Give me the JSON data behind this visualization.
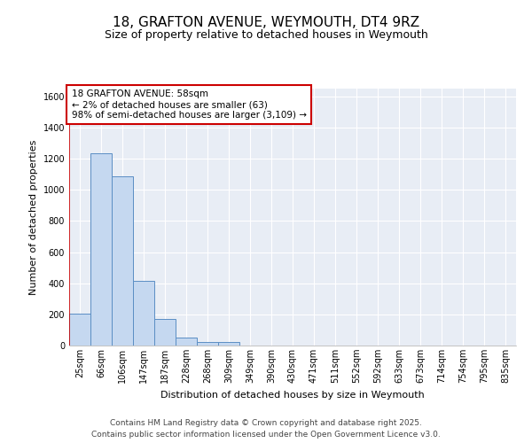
{
  "title_line1": "18, GRAFTON AVENUE, WEYMOUTH, DT4 9RZ",
  "title_line2": "Size of property relative to detached houses in Weymouth",
  "xlabel": "Distribution of detached houses by size in Weymouth",
  "ylabel": "Number of detached properties",
  "categories": [
    "25sqm",
    "66sqm",
    "106sqm",
    "147sqm",
    "187sqm",
    "228sqm",
    "268sqm",
    "309sqm",
    "349sqm",
    "390sqm",
    "430sqm",
    "471sqm",
    "511sqm",
    "552sqm",
    "592sqm",
    "633sqm",
    "673sqm",
    "714sqm",
    "754sqm",
    "795sqm",
    "835sqm"
  ],
  "values": [
    205,
    1235,
    1085,
    415,
    170,
    50,
    25,
    20,
    0,
    0,
    0,
    0,
    0,
    0,
    0,
    0,
    0,
    0,
    0,
    0,
    0
  ],
  "bar_color": "#c5d8f0",
  "bar_edge_color": "#5b8ec4",
  "annotation_line1": "18 GRAFTON AVENUE: 58sqm",
  "annotation_line2": "← 2% of detached houses are smaller (63)",
  "annotation_line3": "98% of semi-detached houses are larger (3,109) →",
  "annotation_box_color": "#cc0000",
  "vline_color": "#cc0000",
  "ylim": [
    0,
    1650
  ],
  "yticks": [
    0,
    200,
    400,
    600,
    800,
    1000,
    1200,
    1400,
    1600
  ],
  "bg_color": "#e8edf5",
  "grid_color": "#ffffff",
  "footer_line1": "Contains HM Land Registry data © Crown copyright and database right 2025.",
  "footer_line2": "Contains public sector information licensed under the Open Government Licence v3.0.",
  "title_fontsize": 11,
  "subtitle_fontsize": 9,
  "axis_label_fontsize": 8,
  "tick_fontsize": 7,
  "annotation_fontsize": 7.5,
  "footer_fontsize": 6.5
}
